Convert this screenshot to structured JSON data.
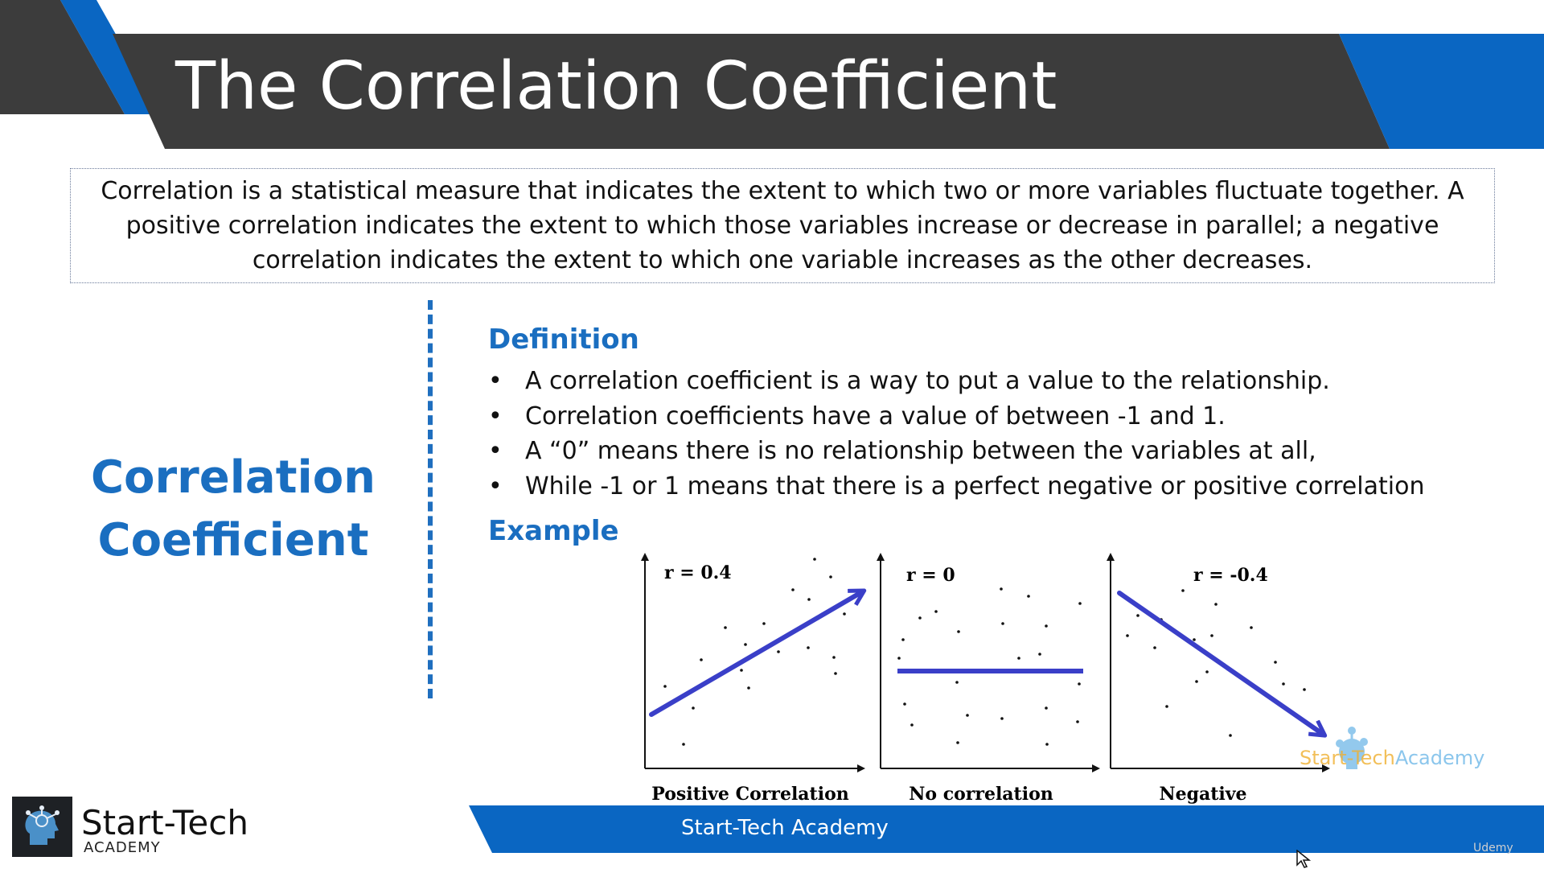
{
  "slide": {
    "title": "The Correlation Coefficient",
    "intro": "Correlation is a statistical measure that indicates the extent to which two or more variables fluctuate together. A positive correlation indicates the extent to which those variables increase or decrease in parallel; a negative correlation indicates the extent to which one variable increases as the other decreases.",
    "side_title_line1": "Correlation",
    "side_title_line2": "Coefficient",
    "definition_heading": "Definition",
    "bullet_char": "•",
    "bullets": [
      "A correlation coefficient is a way to put a value to the relationship.",
      "Correlation coefficients have a value of between -1 and 1.",
      "A “0” means there is no relationship between the variables at all,",
      "While -1 or 1 means that there is a perfect negative or positive correlation"
    ],
    "example_heading": "Example"
  },
  "plots": [
    {
      "r_label": "r =  0.4",
      "caption": "Positive Correlation",
      "trend": "up-arrow"
    },
    {
      "r_label": "r = 0",
      "caption": "No correlation",
      "trend": "flat-line"
    },
    {
      "r_label": "r = -0.4",
      "caption": "Negative",
      "trend": "down-arrow"
    }
  ],
  "footer": {
    "bar_text": "Start-Tech Academy",
    "logo_name": "Start-Tech",
    "logo_sub": "ACADEMY",
    "watermark_start": "Start-Tech",
    "watermark_academy": "Academy",
    "udemy": "Udemy"
  },
  "colors": {
    "title_bar": "#3c3c3c",
    "accent_blue": "#0a66c2",
    "heading_blue": "#1a6ec0",
    "trend_line": "#3a3fc8"
  }
}
